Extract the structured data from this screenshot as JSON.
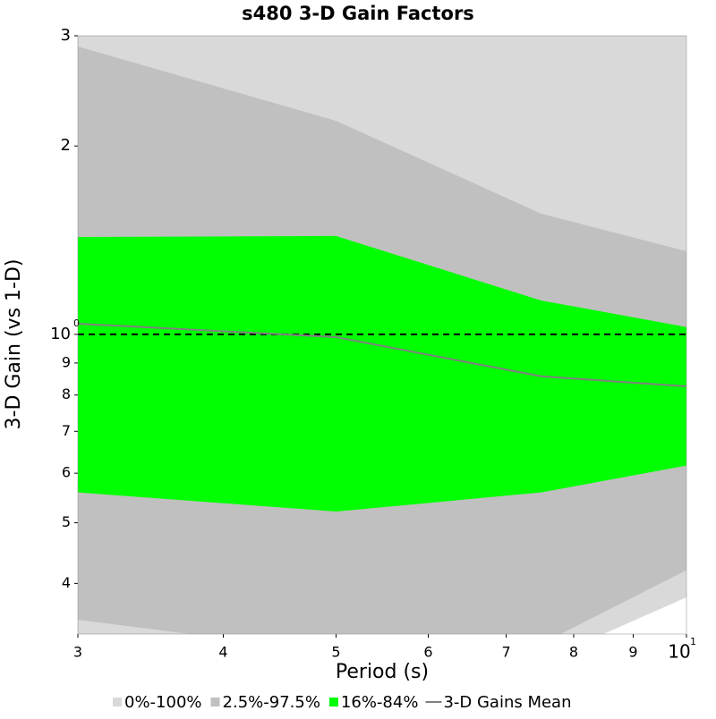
{
  "chart_data": {
    "type": "band-line",
    "title": "s480 3-D Gain Factors",
    "xlabel": "Period (s)",
    "ylabel": "3-D Gain (vs 1-D)",
    "xscale": "log",
    "yscale": "log",
    "x": [
      3,
      5,
      7.5,
      10
    ],
    "xlim": [
      3,
      10
    ],
    "ylim": [
      0.332,
      3
    ],
    "xticks": [
      3,
      4,
      5,
      6,
      7,
      8,
      9,
      {
        "value": 10,
        "label": "10",
        "sup": "1"
      }
    ],
    "yticks": [
      {
        "value": 0.4,
        "label": "4"
      },
      {
        "value": 0.5,
        "label": "5"
      },
      {
        "value": 0.6,
        "label": "6"
      },
      {
        "value": 0.7,
        "label": "7"
      },
      {
        "value": 0.8,
        "label": "8"
      },
      {
        "value": 0.9,
        "label": "9"
      },
      {
        "value": 1,
        "label": "10",
        "sup": "0"
      },
      2,
      3
    ],
    "reference_line": 1,
    "bands": [
      {
        "name": "0%-100%",
        "color": "#d9d9d9",
        "lower": [
          0.32,
          0.3,
          0.3,
          0.38
        ],
        "upper": [
          3.5,
          3.5,
          3.5,
          3.5
        ]
      },
      {
        "name": "2.5%-97.5%",
        "color": "#c0c0c0",
        "lower": [
          0.35,
          0.31,
          0.32,
          0.42
        ],
        "upper": [
          2.884,
          2.194,
          1.559,
          1.358
        ]
      },
      {
        "name": "16%-84%",
        "color": "#00ff00",
        "lower": [
          0.559,
          0.521,
          0.559,
          0.617
        ],
        "upper": [
          1.431,
          1.436,
          1.133,
          1.027
        ]
      }
    ],
    "series": [
      {
        "name": "3-D Gains Mean",
        "color": "#808080",
        "values": [
          1.04,
          0.99,
          0.857,
          0.826
        ]
      }
    ]
  }
}
